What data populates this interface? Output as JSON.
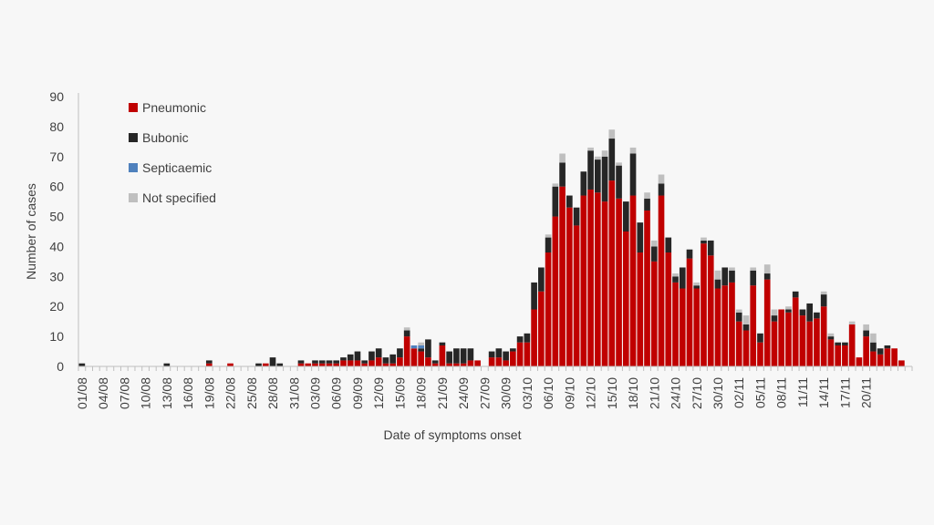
{
  "chart_data": {
    "type": "bar",
    "stacked": true,
    "title": "",
    "xlabel": "Date of symptoms onset",
    "ylabel": "Number of cases",
    "ylim": [
      0,
      90
    ],
    "yticks": [
      0,
      10,
      20,
      30,
      40,
      50,
      60,
      70,
      80,
      90
    ],
    "grid": false,
    "legend_position": "top-left",
    "start_date": "01/08",
    "x_tick_labels": [
      "01/08",
      "04/08",
      "07/08",
      "10/08",
      "13/08",
      "16/08",
      "19/08",
      "22/08",
      "25/08",
      "28/08",
      "31/08",
      "03/09",
      "06/09",
      "09/09",
      "12/09",
      "15/09",
      "18/09",
      "21/09",
      "24/09",
      "27/09",
      "30/09",
      "03/10",
      "06/10",
      "09/10",
      "12/10",
      "15/10",
      "18/10",
      "21/10",
      "24/10",
      "27/10",
      "30/10",
      "02/11",
      "05/11",
      "08/11",
      "11/11",
      "14/11",
      "17/11",
      "20/11"
    ],
    "series": [
      {
        "name": "Pneumonic",
        "color": "#c00000",
        "values": [
          0,
          0,
          0,
          0,
          0,
          0,
          0,
          0,
          0,
          0,
          0,
          0,
          0,
          0,
          0,
          0,
          0,
          0,
          1,
          0,
          0,
          1,
          0,
          0,
          0,
          0,
          1,
          0,
          0,
          0,
          0,
          1,
          1,
          1,
          1,
          1,
          1,
          2,
          2,
          2,
          1,
          2,
          3,
          1,
          1,
          3,
          10,
          6,
          5,
          3,
          1,
          7,
          1,
          1,
          1,
          2,
          2,
          0,
          3,
          3,
          2,
          5,
          8,
          8,
          19,
          25,
          38,
          50,
          60,
          53,
          47,
          57,
          59,
          58,
          55,
          62,
          56,
          45,
          57,
          38,
          52,
          35,
          57,
          38,
          28,
          26,
          36,
          26,
          41,
          37,
          26,
          27,
          28,
          15,
          12,
          27,
          8,
          29,
          15,
          19,
          18,
          23,
          17,
          15,
          16,
          20,
          9,
          7,
          7,
          14,
          3,
          10,
          5,
          4,
          6,
          6,
          2,
          0
        ]
      },
      {
        "name": "Bubonic",
        "color": "#262626",
        "values": [
          1,
          0,
          0,
          0,
          0,
          0,
          0,
          0,
          0,
          0,
          0,
          0,
          1,
          0,
          0,
          0,
          0,
          0,
          1,
          0,
          0,
          0,
          0,
          0,
          0,
          1,
          0,
          3,
          1,
          0,
          0,
          1,
          0,
          1,
          1,
          1,
          1,
          1,
          2,
          3,
          1,
          3,
          3,
          2,
          3,
          3,
          2,
          0,
          1,
          6,
          1,
          1,
          4,
          5,
          5,
          4,
          0,
          0,
          2,
          3,
          3,
          1,
          2,
          3,
          9,
          8,
          5,
          10,
          8,
          4,
          6,
          8,
          13,
          11,
          15,
          14,
          11,
          10,
          14,
          10,
          4,
          5,
          4,
          5,
          2,
          7,
          3,
          1,
          1,
          5,
          3,
          6,
          4,
          3,
          2,
          5,
          3,
          2,
          2,
          0,
          1,
          2,
          2,
          6,
          2,
          4,
          1,
          1,
          1,
          0,
          0,
          2,
          3,
          2,
          1,
          0,
          0,
          0
        ]
      },
      {
        "name": "Septicaemic",
        "color": "#4f81bd",
        "values": [
          0,
          0,
          0,
          0,
          0,
          0,
          0,
          0,
          0,
          0,
          0,
          0,
          0,
          0,
          0,
          0,
          0,
          0,
          0,
          0,
          0,
          0,
          0,
          0,
          0,
          0,
          0,
          0,
          0,
          0,
          0,
          0,
          0,
          0,
          0,
          0,
          0,
          0,
          0,
          0,
          0,
          0,
          0,
          0,
          0,
          0,
          0,
          1,
          1,
          0,
          0,
          0,
          0,
          0,
          0,
          0,
          0,
          0,
          0,
          0,
          0,
          0,
          0,
          0,
          0,
          0,
          0,
          0,
          0,
          0,
          0,
          0,
          0,
          0,
          0,
          0,
          0,
          0,
          0,
          0,
          0,
          0,
          0,
          0,
          0,
          0,
          0,
          0,
          0,
          0,
          0,
          0,
          0,
          0,
          0,
          0,
          0,
          0,
          0,
          0,
          0,
          0,
          0,
          0,
          0,
          0,
          0,
          0,
          0,
          0,
          0,
          0,
          0,
          0,
          0,
          0,
          0,
          0
        ]
      },
      {
        "name": "Not specified",
        "color": "#bfbfbf",
        "values": [
          0,
          0,
          0,
          0,
          0,
          0,
          0,
          0,
          0,
          0,
          0,
          0,
          0,
          0,
          0,
          0,
          0,
          0,
          0,
          0,
          0,
          0,
          0,
          0,
          0,
          0,
          0,
          0,
          0,
          0,
          0,
          0,
          0,
          0,
          0,
          0,
          0,
          0,
          0,
          0,
          0,
          0,
          0,
          0,
          0,
          0,
          1,
          0,
          1,
          0,
          0,
          0,
          0,
          0,
          0,
          0,
          0,
          0,
          0,
          0,
          0,
          0,
          0,
          0,
          0,
          0,
          1,
          1,
          3,
          0,
          0,
          0,
          1,
          1,
          2,
          3,
          1,
          0,
          2,
          0,
          2,
          2,
          3,
          0,
          1,
          0,
          0,
          1,
          1,
          0,
          3,
          0,
          1,
          1,
          3,
          1,
          0,
          3,
          2,
          0,
          1,
          0,
          0,
          0,
          0,
          1,
          1,
          0,
          0,
          1,
          0,
          2,
          3,
          0,
          0,
          0,
          0,
          0
        ]
      }
    ]
  }
}
